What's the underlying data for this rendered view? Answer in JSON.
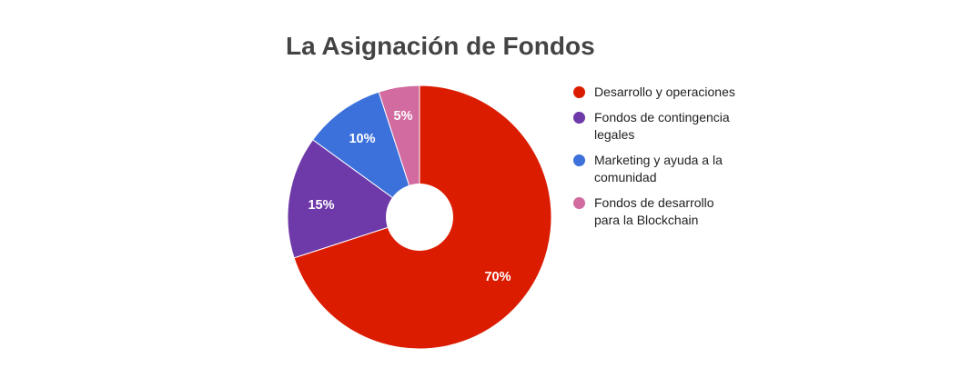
{
  "chart_data": {
    "type": "pie",
    "donut": true,
    "title": "La Asignación de Fondos",
    "categories": [
      "Desarrollo y operaciones",
      "Fondos de contingencia legales",
      "Marketing y ayuda a la comunidad",
      "Fondos de desarrollo para la Blockchain"
    ],
    "values": [
      70,
      15,
      10,
      5
    ],
    "labels": [
      "70%",
      "15%",
      "10%",
      "5%"
    ],
    "colors": [
      "#dc1c00",
      "#6e39a8",
      "#3c70db",
      "#d26b9f"
    ],
    "legend_position": "right"
  },
  "header": {
    "title": "La Asignación de Fondos"
  },
  "legend": {
    "items": [
      {
        "label": "Desarrollo y operaciones",
        "color": "#dc1c00"
      },
      {
        "label": "Fondos de contingencia legales",
        "color": "#6e39a8"
      },
      {
        "label": "Marketing y ayuda a la comunidad",
        "color": "#3c70db"
      },
      {
        "label": "Fondos de desarrollo para la Blockchain",
        "color": "#d26b9f"
      }
    ]
  },
  "slices": [
    {
      "label": "70%"
    },
    {
      "label": "15%"
    },
    {
      "label": "10%"
    },
    {
      "label": "5%"
    }
  ]
}
